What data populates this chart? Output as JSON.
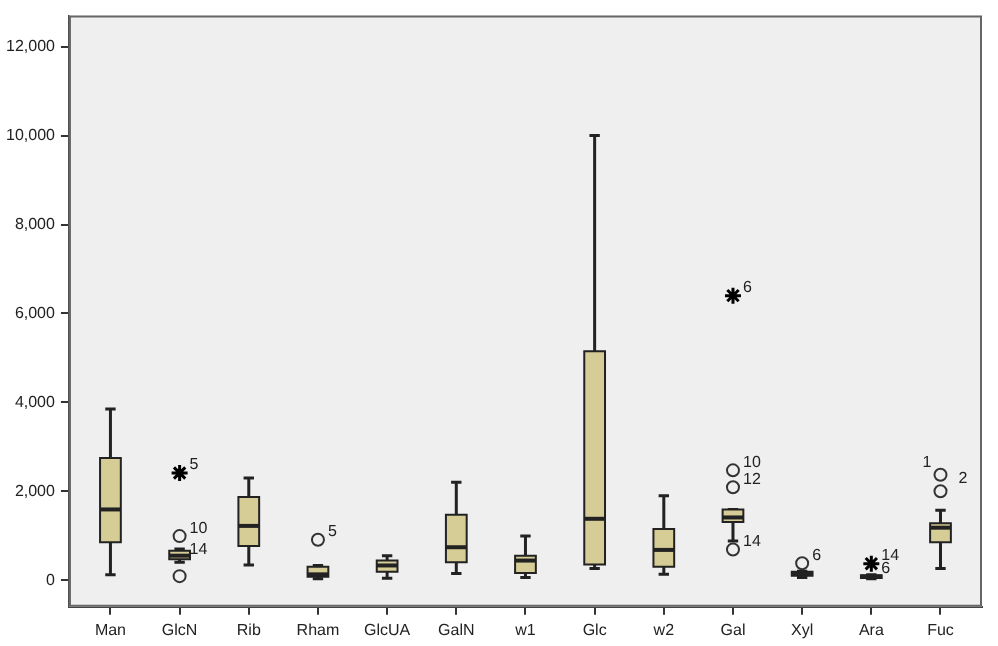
{
  "chart_data": {
    "type": "box",
    "categories": [
      "Man",
      "GlcN",
      "Rib",
      "Rham",
      "GlcUA",
      "GalN",
      "w1",
      "Glc",
      "w2",
      "Gal",
      "Xyl",
      "Ara",
      "Fuc"
    ],
    "ylim": [
      -600,
      12700
    ],
    "yticks": [
      {
        "value": 0,
        "label": "0"
      },
      {
        "value": 2000,
        "label": "2,000"
      },
      {
        "value": 4000,
        "label": "4,000"
      },
      {
        "value": 6000,
        "label": "6,000"
      },
      {
        "value": 8000,
        "label": "8,000"
      },
      {
        "value": 10000,
        "label": "10,000"
      },
      {
        "value": 12000,
        "label": "12,000"
      }
    ],
    "grid": false,
    "legend": false,
    "series": [
      {
        "type": "box",
        "color": "#d6cc96",
        "boxes": [
          {
            "low": 120,
            "q1": 850,
            "median": 1590,
            "q3": 2750,
            "high": 3850
          },
          {
            "low": 400,
            "q1": 470,
            "median": 550,
            "q3": 660,
            "high": 700
          },
          {
            "low": 340,
            "q1": 770,
            "median": 1220,
            "q3": 1870,
            "high": 2300
          },
          {
            "low": 30,
            "q1": 75,
            "median": 130,
            "q3": 300,
            "high": 330
          },
          {
            "low": 45,
            "q1": 190,
            "median": 330,
            "q3": 440,
            "high": 550
          },
          {
            "low": 150,
            "q1": 400,
            "median": 740,
            "q3": 1470,
            "high": 2200
          },
          {
            "low": 60,
            "q1": 160,
            "median": 440,
            "q3": 550,
            "high": 990
          },
          {
            "low": 260,
            "q1": 350,
            "median": 1380,
            "q3": 5150,
            "high": 10000
          },
          {
            "low": 130,
            "q1": 300,
            "median": 680,
            "q3": 1150,
            "high": 1900
          },
          {
            "low": 880,
            "q1": 1310,
            "median": 1410,
            "q3": 1590,
            "high": 1590
          },
          {
            "low": 60,
            "q1": 100,
            "median": 150,
            "q3": 190,
            "high": 200
          },
          {
            "low": 30,
            "q1": 50,
            "median": 80,
            "q3": 110,
            "high": 120
          },
          {
            "low": 260,
            "q1": 850,
            "median": 1180,
            "q3": 1280,
            "high": 1570
          }
        ]
      },
      {
        "type": "scatter",
        "marker": "circle",
        "color": "#333333",
        "x": [
          "GlcN",
          "GlcN",
          "Rham",
          "Gal",
          "Gal",
          "Gal",
          "Xyl",
          "Fuc",
          "Fuc"
        ],
        "values": [
          90,
          990,
          910,
          2470,
          2090,
          690,
          380,
          2370,
          2000
        ]
      },
      {
        "type": "scatter",
        "marker": "cross",
        "color": "#000000",
        "x": [
          "GlcN",
          "Gal",
          "Ara"
        ],
        "values": [
          2410,
          6400,
          370
        ]
      }
    ],
    "annotations": [
      {
        "text": "5",
        "x": "GlcN",
        "y": 2410
      },
      {
        "text": "10",
        "x": "GlcN",
        "y": 990
      },
      {
        "text": "14",
        "x": "GlcN",
        "y": 500
      },
      {
        "text": "5",
        "x": "Rham",
        "y": 910
      },
      {
        "text": "6",
        "x": "Gal",
        "y": 6400
      },
      {
        "text": "10",
        "x": "Gal",
        "y": 2470
      },
      {
        "text": "12",
        "x": "Gal",
        "y": 2090
      },
      {
        "text": "14",
        "x": "Gal",
        "y": 690
      },
      {
        "text": "6",
        "x": "Xyl",
        "y": 380
      },
      {
        "text": "14",
        "x": "Ara",
        "y": 370
      },
      {
        "text": "6",
        "x": "Ara",
        "y": 90
      },
      {
        "text": "1",
        "x": "Fuc",
        "y": 2370
      },
      {
        "text": "2",
        "x": "Fuc",
        "y": 2370
      }
    ]
  }
}
